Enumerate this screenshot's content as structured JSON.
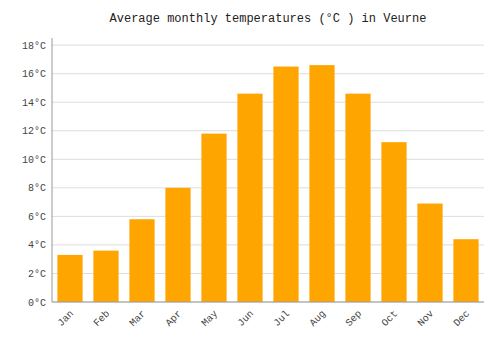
{
  "chart_data": {
    "type": "bar",
    "title": "Average monthly temperatures (°C ) in Veurne",
    "categories": [
      "Jan",
      "Feb",
      "Mar",
      "Apr",
      "May",
      "Jun",
      "Jul",
      "Aug",
      "Sep",
      "Oct",
      "Nov",
      "Dec"
    ],
    "values": [
      3.3,
      3.6,
      5.8,
      8.0,
      11.8,
      14.6,
      16.5,
      16.6,
      14.6,
      11.2,
      6.9,
      4.4
    ],
    "color": "#FFA500",
    "ylim": [
      0,
      18.5
    ],
    "yticks": [
      {
        "value": 0,
        "label": "0°C"
      },
      {
        "value": 2,
        "label": "2°C"
      },
      {
        "value": 4,
        "label": "4°C"
      },
      {
        "value": 6,
        "label": "6°C"
      },
      {
        "value": 8,
        "label": "8°C"
      },
      {
        "value": 10,
        "label": "10°C"
      },
      {
        "value": 12,
        "label": "12°C"
      },
      {
        "value": 14,
        "label": "14°C"
      },
      {
        "value": 16,
        "label": "16°C"
      },
      {
        "value": 18,
        "label": "18°C"
      }
    ],
    "grid": true
  }
}
